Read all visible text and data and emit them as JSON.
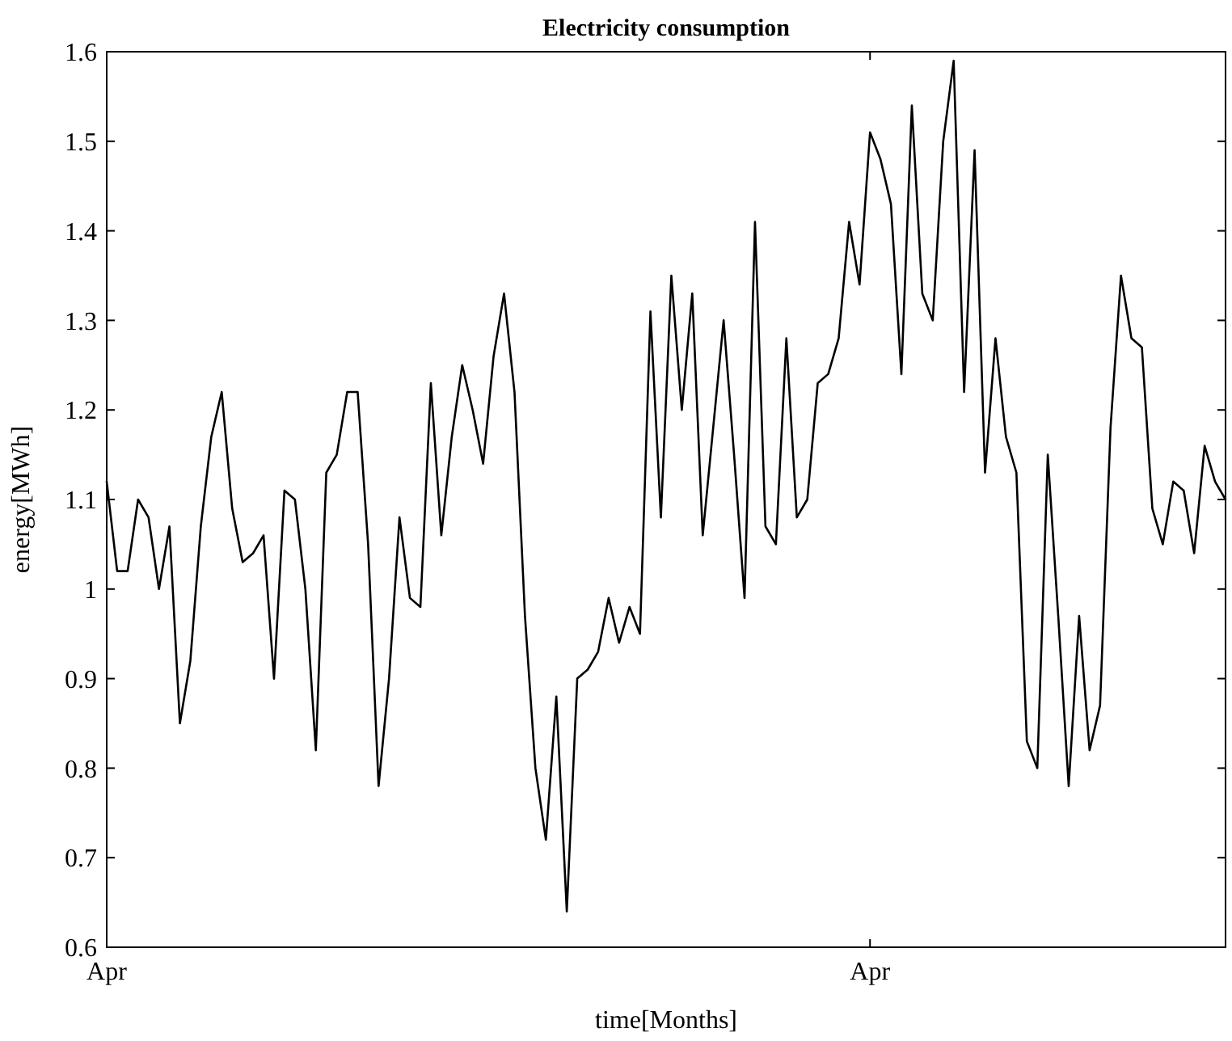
{
  "chart_data": {
    "type": "line",
    "title": "Electricity consumption",
    "xlabel": "time[Months]",
    "ylabel": "energy[MWh]",
    "categories": [
      "Apr",
      null,
      null,
      null,
      null,
      null,
      null,
      null,
      null,
      null,
      null,
      null,
      null,
      null,
      null,
      null,
      null,
      null,
      null,
      null,
      null,
      null,
      null,
      null,
      null,
      null,
      null,
      null,
      null,
      null,
      null,
      null,
      null,
      null,
      null,
      null,
      null,
      null,
      null,
      null,
      null,
      null,
      null,
      null,
      null,
      null,
      null,
      null,
      null,
      null,
      null,
      null,
      null,
      null,
      null,
      null,
      null,
      null,
      null,
      null,
      null,
      null,
      null,
      null,
      null,
      null,
      null,
      null,
      null,
      null,
      null,
      null,
      null,
      "Apr",
      null,
      null,
      null,
      null,
      null,
      null,
      null,
      null,
      null,
      null,
      null,
      null,
      null,
      null,
      null,
      null,
      null,
      null,
      null,
      null,
      null,
      null,
      null,
      null,
      null,
      null,
      null,
      null,
      null,
      null,
      null,
      null,
      null,
      null
    ],
    "ylim": [
      0.6,
      1.6
    ],
    "yticks": [
      0.6,
      0.7,
      0.8,
      0.9,
      1,
      1.1,
      1.2,
      1.3,
      1.4,
      1.5,
      1.6
    ],
    "grid": false,
    "marker": "none",
    "line_style": "solid",
    "series": [
      {
        "color": "#000000",
        "values": [
          1.12,
          1.02,
          1.02,
          1.1,
          1.08,
          1.0,
          1.07,
          0.85,
          0.92,
          1.07,
          1.17,
          1.22,
          1.09,
          1.03,
          1.04,
          1.06,
          0.9,
          1.11,
          1.1,
          1.0,
          0.82,
          1.13,
          1.15,
          1.22,
          1.22,
          1.05,
          0.78,
          0.9,
          1.08,
          0.99,
          0.98,
          1.23,
          1.06,
          1.17,
          1.25,
          1.2,
          1.14,
          1.26,
          1.33,
          1.22,
          0.97,
          0.8,
          0.72,
          0.88,
          0.64,
          0.9,
          0.91,
          0.93,
          0.99,
          0.94,
          0.98,
          0.95,
          1.31,
          1.08,
          1.35,
          1.2,
          1.33,
          1.06,
          1.18,
          1.3,
          1.15,
          0.99,
          1.41,
          1.07,
          1.05,
          1.28,
          1.08,
          1.1,
          1.23,
          1.24,
          1.28,
          1.41,
          1.34,
          1.51,
          1.48,
          1.43,
          1.24,
          1.54,
          1.33,
          1.3,
          1.5,
          1.59,
          1.22,
          1.49,
          1.13,
          1.28,
          1.17,
          1.13,
          0.83,
          0.8,
          1.15,
          0.97,
          0.78,
          0.97,
          0.82,
          0.87,
          1.18,
          1.35,
          1.28,
          1.27,
          1.09,
          1.05,
          1.12,
          1.11,
          1.04,
          1.16,
          1.12,
          1.1
        ]
      }
    ]
  }
}
